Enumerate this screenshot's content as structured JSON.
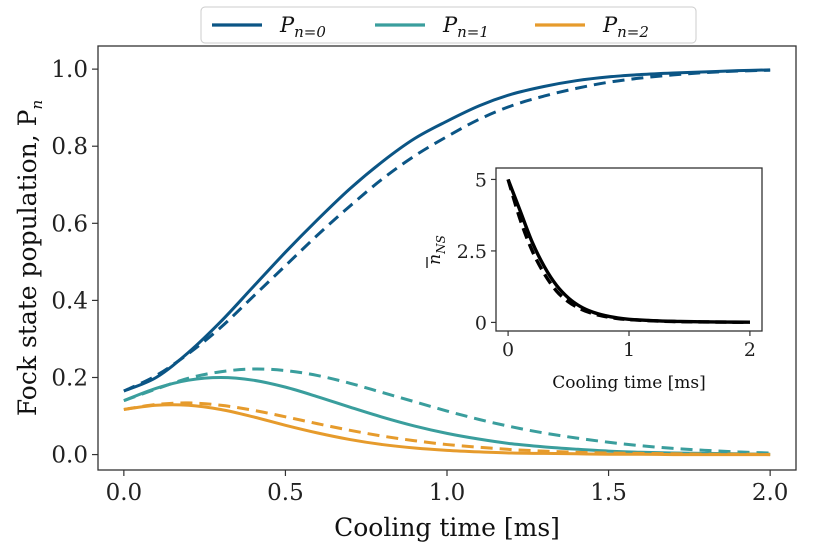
{
  "chart_data": [
    {
      "type": "line",
      "title": "",
      "xlabel": "Cooling time [ms]",
      "ylabel": "Fock state population, P",
      "ylabel_sub": "n",
      "xlim": [
        -0.08,
        2.08
      ],
      "ylim": [
        -0.04,
        1.06
      ],
      "xticks": [
        0.0,
        0.5,
        1.0,
        1.5,
        2.0
      ],
      "xtick_labels": [
        "0.0",
        "0.5",
        "1.0",
        "1.5",
        "2.0"
      ],
      "yticks": [
        0.0,
        0.2,
        0.4,
        0.6,
        0.8,
        1.0
      ],
      "ytick_labels": [
        "0.0",
        "0.2",
        "0.4",
        "0.6",
        "0.8",
        "1.0"
      ],
      "x": [
        0.0,
        0.1,
        0.2,
        0.3,
        0.4,
        0.5,
        0.6,
        0.7,
        0.8,
        0.9,
        1.0,
        1.1,
        1.2,
        1.3,
        1.4,
        1.5,
        1.6,
        1.7,
        1.8,
        1.9,
        2.0
      ],
      "legend": {
        "position": "top-center",
        "entries": [
          {
            "label": "P",
            "sub": "n=0",
            "color": "#0b5585"
          },
          {
            "label": "P",
            "sub": "n=1",
            "color": "#3a9e9d"
          },
          {
            "label": "P",
            "sub": "n=2",
            "color": "#e69b2c"
          }
        ]
      },
      "series": [
        {
          "name": "P_n=0 (solid)",
          "color": "#0b5585",
          "dash": false,
          "values": [
            0.165,
            0.2,
            0.265,
            0.345,
            0.435,
            0.525,
            0.61,
            0.69,
            0.76,
            0.82,
            0.865,
            0.905,
            0.935,
            0.955,
            0.97,
            0.98,
            0.986,
            0.99,
            0.993,
            0.996,
            0.998
          ]
        },
        {
          "name": "P_n=0 (dashed)",
          "color": "#0b5585",
          "dash": true,
          "values": [
            0.165,
            0.205,
            0.262,
            0.33,
            0.41,
            0.49,
            0.57,
            0.645,
            0.715,
            0.775,
            0.825,
            0.87,
            0.905,
            0.93,
            0.95,
            0.966,
            0.977,
            0.985,
            0.991,
            0.995,
            0.997
          ]
        },
        {
          "name": "P_n=1 (solid)",
          "color": "#3a9e9d",
          "dash": false,
          "values": [
            0.14,
            0.172,
            0.193,
            0.2,
            0.193,
            0.175,
            0.15,
            0.123,
            0.097,
            0.074,
            0.055,
            0.04,
            0.028,
            0.02,
            0.014,
            0.009,
            0.006,
            0.004,
            0.003,
            0.002,
            0.001
          ]
        },
        {
          "name": "P_n=1 (dashed)",
          "color": "#3a9e9d",
          "dash": true,
          "values": [
            0.14,
            0.17,
            0.198,
            0.215,
            0.222,
            0.218,
            0.205,
            0.185,
            0.161,
            0.137,
            0.113,
            0.091,
            0.072,
            0.056,
            0.043,
            0.032,
            0.023,
            0.016,
            0.011,
            0.007,
            0.004
          ]
        },
        {
          "name": "P_n=2 (solid)",
          "color": "#e69b2c",
          "dash": false,
          "values": [
            0.117,
            0.128,
            0.128,
            0.117,
            0.098,
            0.076,
            0.056,
            0.039,
            0.026,
            0.017,
            0.011,
            0.007,
            0.004,
            0.003,
            0.002,
            0.001,
            0.001,
            0.0,
            0.0,
            0.0,
            0.0
          ]
        },
        {
          "name": "P_n=2 (dashed)",
          "color": "#e69b2c",
          "dash": true,
          "values": [
            0.117,
            0.13,
            0.134,
            0.128,
            0.115,
            0.098,
            0.08,
            0.063,
            0.048,
            0.036,
            0.026,
            0.019,
            0.013,
            0.009,
            0.006,
            0.004,
            0.003,
            0.002,
            0.001,
            0.001,
            0.0
          ]
        }
      ]
    },
    {
      "type": "line",
      "role": "inset",
      "title": "",
      "xlabel": "Cooling time [ms]",
      "ylabel": "n",
      "ylabel_sub": "NS",
      "xlim": [
        -0.1,
        2.1
      ],
      "ylim": [
        -0.3,
        5.4
      ],
      "xticks": [
        0,
        1,
        2
      ],
      "xtick_labels": [
        "0",
        "1",
        "2"
      ],
      "yticks": [
        0,
        2.5,
        5
      ],
      "ytick_labels": [
        "0",
        "2.5",
        "5"
      ],
      "x": [
        0.0,
        0.1,
        0.2,
        0.3,
        0.4,
        0.5,
        0.6,
        0.7,
        0.8,
        0.9,
        1.0,
        1.2,
        1.4,
        1.6,
        1.8,
        2.0
      ],
      "series": [
        {
          "name": "n_NS (solid)",
          "color": "#000000",
          "dash": false,
          "values": [
            5.0,
            3.9,
            2.8,
            1.95,
            1.3,
            0.85,
            0.55,
            0.36,
            0.24,
            0.16,
            0.11,
            0.06,
            0.035,
            0.02,
            0.012,
            0.008
          ]
        },
        {
          "name": "n_NS (dashed)",
          "color": "#000000",
          "dash": true,
          "values": [
            5.0,
            3.6,
            2.5,
            1.7,
            1.1,
            0.72,
            0.47,
            0.31,
            0.21,
            0.14,
            0.1,
            0.055,
            0.03,
            0.018,
            0.011,
            0.007
          ]
        }
      ]
    }
  ]
}
